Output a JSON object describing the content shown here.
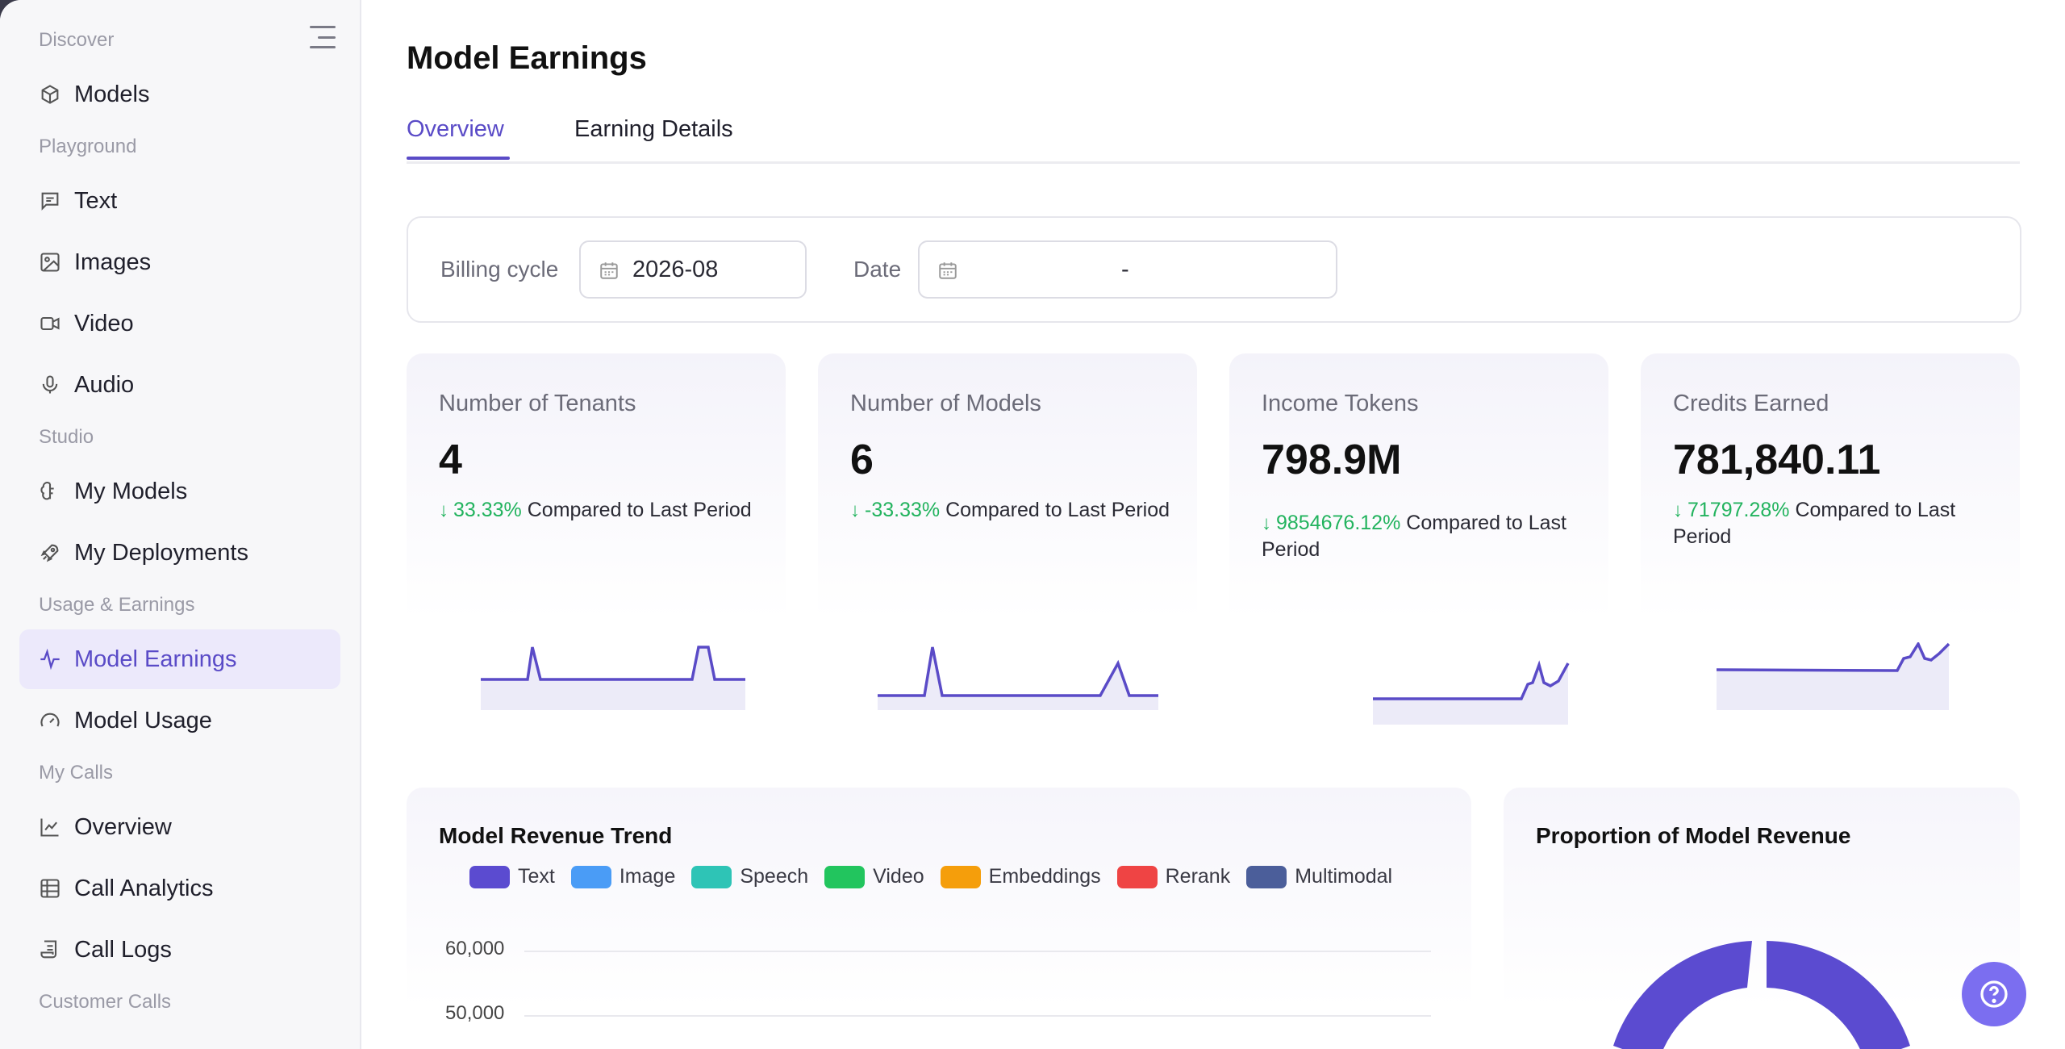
{
  "sidebar": {
    "sections": [
      {
        "label": "Discover"
      },
      {
        "label": "Playground"
      },
      {
        "label": "Studio"
      },
      {
        "label": "Usage & Earnings"
      },
      {
        "label": "My Calls"
      },
      {
        "label": "Customer Calls"
      }
    ],
    "items": [
      {
        "label": "Models",
        "icon": "cube-icon"
      },
      {
        "label": "Text",
        "icon": "message-icon"
      },
      {
        "label": "Images",
        "icon": "image-icon"
      },
      {
        "label": "Video",
        "icon": "video-icon"
      },
      {
        "label": "Audio",
        "icon": "microphone-icon"
      },
      {
        "label": "My Models",
        "icon": "brain-icon"
      },
      {
        "label": "My Deployments",
        "icon": "rocket-icon"
      },
      {
        "label": "Model Earnings",
        "icon": "activity-icon",
        "active": true
      },
      {
        "label": "Model Usage",
        "icon": "gauge-icon"
      },
      {
        "label": "Overview",
        "icon": "line-chart-icon"
      },
      {
        "label": "Call Analytics",
        "icon": "table-icon"
      },
      {
        "label": "Call Logs",
        "icon": "scroll-icon"
      }
    ]
  },
  "page": {
    "title": "Model Earnings",
    "tabs": [
      {
        "label": "Overview",
        "active": true
      },
      {
        "label": "Earning Details",
        "active": false
      }
    ]
  },
  "filters": {
    "billing_label": "Billing cycle",
    "billing_value": "2026-08",
    "date_label": "Date",
    "date_value": "-"
  },
  "stats": [
    {
      "title": "Number of Tenants",
      "value": "4",
      "change": "33.33%",
      "suffix": "Compared to Last Period"
    },
    {
      "title": "Number of Models",
      "value": "6",
      "change": "-33.33%",
      "suffix": "Compared to Last Period"
    },
    {
      "title": "Income Tokens",
      "value": "798.9M",
      "change": "9854676.12%",
      "suffix": "Compared to Last Period"
    },
    {
      "title": "Credits Earned",
      "value": "781,840.11",
      "change": "71797.28%",
      "suffix": "Compared to Last Period"
    }
  ],
  "colors": {
    "accent": "#5a4bc7",
    "positive": "#22b35e",
    "sparkline": "#5a4bc7",
    "sparkline_fill": "#ecebf8"
  },
  "revenue_trend": {
    "title": "Model Revenue Trend",
    "legend": [
      {
        "name": "Text",
        "color": "#5b4bd0"
      },
      {
        "name": "Image",
        "color": "#4a9cf6"
      },
      {
        "name": "Speech",
        "color": "#2ec4b6"
      },
      {
        "name": "Video",
        "color": "#22c55e"
      },
      {
        "name": "Embeddings",
        "color": "#f59e0b"
      },
      {
        "name": "Rerank",
        "color": "#ef4444"
      },
      {
        "name": "Multimodal",
        "color": "#4b5e9a"
      }
    ],
    "y_ticks": [
      "60,000",
      "50,000"
    ]
  },
  "proportion": {
    "title": "Proportion of Model Revenue"
  },
  "help": {
    "icon": "question-circle-icon"
  }
}
